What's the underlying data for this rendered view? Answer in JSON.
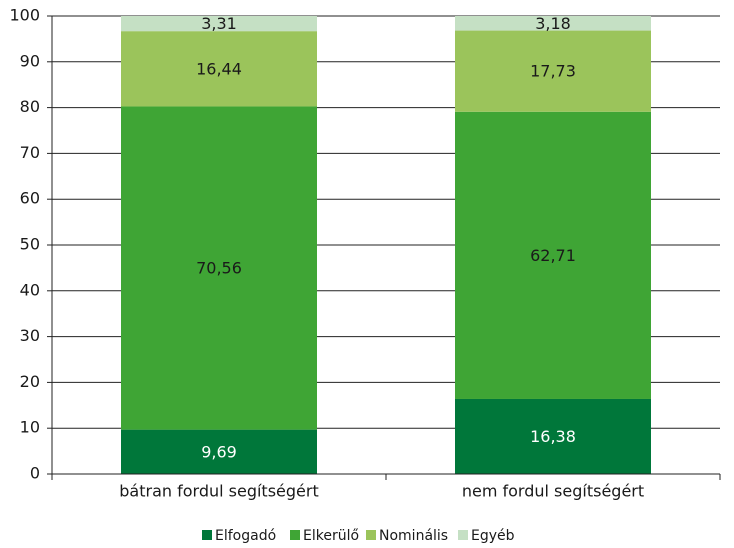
{
  "chart_data": {
    "type": "stacked_bar",
    "categories": [
      "bátran fordul segítségért",
      "nem fordul segítségért"
    ],
    "series": [
      {
        "name": "Elfogadó",
        "color": "#00773a",
        "values": [
          9.69,
          16.38
        ],
        "value_labels": [
          "9,69",
          "16,38"
        ]
      },
      {
        "name": "Elkerülő",
        "color": "#3fa535",
        "values": [
          70.56,
          62.71
        ],
        "value_labels": [
          "70,56",
          "62,71"
        ]
      },
      {
        "name": "Nominális",
        "color": "#9bc45b",
        "values": [
          16.44,
          17.73
        ],
        "value_labels": [
          "16,44",
          "17,73"
        ]
      },
      {
        "name": "Egyéb",
        "color": "#c5e0c4",
        "values": [
          3.31,
          3.18
        ],
        "value_labels": [
          "3,31",
          "3,18"
        ]
      }
    ],
    "ylim": [
      0,
      100
    ],
    "yticks": [
      0,
      10,
      20,
      30,
      40,
      50,
      60,
      70,
      80,
      90,
      100
    ],
    "grid": true,
    "legend": "bottom"
  }
}
